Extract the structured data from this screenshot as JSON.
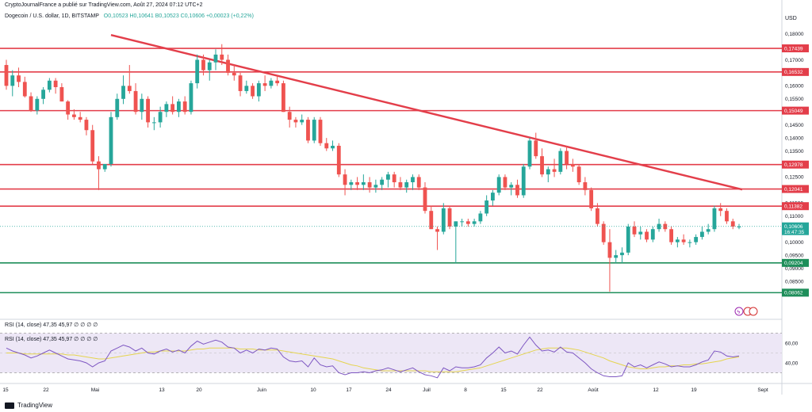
{
  "header": {
    "publisher": "CryptoJournalFrance a publié sur TradingView.com, Août 27, 2024 07:12 UTC+2",
    "symbol_line": "Dogecoin / U.S. dollar, 1D, BITSTAMP",
    "ohlc": "O0,10523  H0,10641  B0,10523  C0,10606  +0,00023 (+0,22%)",
    "currency": "USD"
  },
  "rsi": {
    "label_top": "RSI (14, close)  47,35  45,97  ∅  ∅  ∅  ∅",
    "label_pane": "RSI (14, close)  47,35  45,97  ∅  ∅  ∅  ∅",
    "ticks": [
      "60,00",
      "40,00"
    ],
    "color_rsi": "#7e57c2",
    "color_ma": "#e5d44e",
    "band_color": "#ede7f6"
  },
  "footer": {
    "brand": "TradingView"
  },
  "colors": {
    "up": "#26a69a",
    "down": "#ef5350",
    "resistance": "#e33e4a",
    "support": "#1e8e5a",
    "trend": "#e33e4a",
    "price_tag": "#26a69a"
  },
  "chart_data": {
    "type": "candlestick",
    "title": "Dogecoin / U.S. dollar, 1D, BITSTAMP",
    "x_ticks": [
      "15",
      "22",
      "Mai",
      "13",
      "20",
      "Juin",
      "10",
      "17",
      "24",
      "Juil",
      "8",
      "15",
      "22",
      "Août",
      "12",
      "19",
      "Sept"
    ],
    "y_ticks": [
      "0,18000",
      "0,17500",
      "0,17000",
      "0,16500",
      "0,16000",
      "0,15500",
      "0,15000",
      "0,14500",
      "0,14000",
      "0,13500",
      "0,13000",
      "0,12500",
      "0,12000",
      "0,11500",
      "0,11000",
      "0,10500",
      "0,10000",
      "0,09500",
      "0,09000",
      "0,08500",
      "0,08000"
    ],
    "ylim": [
      0.078,
      0.182
    ],
    "price_levels_resistance": [
      "0,17439",
      "0,16532",
      "0,15049",
      "0,12978",
      "0,12041",
      "0,11382"
    ],
    "price_levels_support": [
      "0,09204",
      "0,08062"
    ],
    "current_price": "0,10606",
    "countdown": "16:47:35",
    "trendline": [
      [
        0.1795,
        "2024-04-18"
      ],
      [
        0.1202,
        "2024-08-30"
      ]
    ],
    "candles_ohlc": [
      [
        0.168,
        0.17,
        0.1585,
        0.16
      ],
      [
        0.16,
        0.166,
        0.156,
        0.164
      ],
      [
        0.164,
        0.167,
        0.1595,
        0.1615
      ],
      [
        0.1615,
        0.1635,
        0.1555,
        0.156
      ],
      [
        0.156,
        0.1575,
        0.15,
        0.1505
      ],
      [
        0.1505,
        0.156,
        0.149,
        0.155
      ],
      [
        0.155,
        0.1595,
        0.153,
        0.1585
      ],
      [
        0.1585,
        0.163,
        0.1575,
        0.162
      ],
      [
        0.162,
        0.163,
        0.157,
        0.1595
      ],
      [
        0.1595,
        0.161,
        0.154,
        0.154
      ],
      [
        0.154,
        0.1545,
        0.147,
        0.149
      ],
      [
        0.149,
        0.151,
        0.147,
        0.148
      ],
      [
        0.148,
        0.15,
        0.146,
        0.147
      ],
      [
        0.147,
        0.148,
        0.141,
        0.143
      ],
      [
        0.143,
        0.145,
        0.13,
        0.131
      ],
      [
        0.131,
        0.133,
        0.12,
        0.128
      ],
      [
        0.128,
        0.13,
        0.127,
        0.13
      ],
      [
        0.13,
        0.15,
        0.129,
        0.148
      ],
      [
        0.148,
        0.157,
        0.147,
        0.155
      ],
      [
        0.155,
        0.164,
        0.153,
        0.16
      ],
      [
        0.16,
        0.168,
        0.157,
        0.158
      ],
      [
        0.158,
        0.161,
        0.149,
        0.15
      ],
      [
        0.15,
        0.157,
        0.147,
        0.155
      ],
      [
        0.155,
        0.156,
        0.144,
        0.146
      ],
      [
        0.146,
        0.148,
        0.143,
        0.146
      ],
      [
        0.146,
        0.152,
        0.144,
        0.15
      ],
      [
        0.15,
        0.154,
        0.148,
        0.153
      ],
      [
        0.153,
        0.156,
        0.149,
        0.15
      ],
      [
        0.15,
        0.155,
        0.148,
        0.154
      ],
      [
        0.154,
        0.156,
        0.149,
        0.15
      ],
      [
        0.15,
        0.162,
        0.149,
        0.161
      ],
      [
        0.161,
        0.172,
        0.159,
        0.17
      ],
      [
        0.17,
        0.172,
        0.164,
        0.166
      ],
      [
        0.166,
        0.17,
        0.162,
        0.169
      ],
      [
        0.169,
        0.174,
        0.166,
        0.172
      ],
      [
        0.172,
        0.176,
        0.168,
        0.17
      ],
      [
        0.17,
        0.172,
        0.164,
        0.165
      ],
      [
        0.165,
        0.168,
        0.162,
        0.164
      ],
      [
        0.164,
        0.165,
        0.156,
        0.158
      ],
      [
        0.158,
        0.162,
        0.157,
        0.16
      ],
      [
        0.16,
        0.161,
        0.155,
        0.156
      ],
      [
        0.156,
        0.162,
        0.154,
        0.161
      ],
      [
        0.161,
        0.164,
        0.158,
        0.16
      ],
      [
        0.16,
        0.163,
        0.159,
        0.162
      ],
      [
        0.162,
        0.164,
        0.16,
        0.161
      ],
      [
        0.161,
        0.162,
        0.15,
        0.15
      ],
      [
        0.15,
        0.152,
        0.144,
        0.147
      ],
      [
        0.147,
        0.148,
        0.144,
        0.146
      ],
      [
        0.146,
        0.149,
        0.145,
        0.147
      ],
      [
        0.147,
        0.148,
        0.138,
        0.139
      ],
      [
        0.139,
        0.148,
        0.138,
        0.147
      ],
      [
        0.147,
        0.148,
        0.137,
        0.138
      ],
      [
        0.138,
        0.14,
        0.135,
        0.136
      ],
      [
        0.136,
        0.139,
        0.135,
        0.137
      ],
      [
        0.137,
        0.138,
        0.125,
        0.126
      ],
      [
        0.126,
        0.128,
        0.118,
        0.122
      ],
      [
        0.122,
        0.124,
        0.12,
        0.123
      ],
      [
        0.123,
        0.125,
        0.12,
        0.122
      ],
      [
        0.122,
        0.126,
        0.12,
        0.123
      ],
      [
        0.123,
        0.125,
        0.119,
        0.121
      ],
      [
        0.121,
        0.124,
        0.119,
        0.122
      ],
      [
        0.122,
        0.125,
        0.12,
        0.124
      ],
      [
        0.124,
        0.127,
        0.121,
        0.126
      ],
      [
        0.126,
        0.127,
        0.121,
        0.123
      ],
      [
        0.123,
        0.125,
        0.12,
        0.121
      ],
      [
        0.121,
        0.124,
        0.119,
        0.123
      ],
      [
        0.123,
        0.126,
        0.12,
        0.125
      ],
      [
        0.125,
        0.126,
        0.12,
        0.121
      ],
      [
        0.121,
        0.123,
        0.111,
        0.112
      ],
      [
        0.112,
        0.114,
        0.105,
        0.105
      ],
      [
        0.105,
        0.106,
        0.097,
        0.104
      ],
      [
        0.104,
        0.115,
        0.103,
        0.113
      ],
      [
        0.113,
        0.114,
        0.105,
        0.106
      ],
      [
        0.106,
        0.108,
        0.092,
        0.108
      ],
      [
        0.108,
        0.109,
        0.106,
        0.108
      ],
      [
        0.108,
        0.109,
        0.106,
        0.107
      ],
      [
        0.107,
        0.109,
        0.106,
        0.108
      ],
      [
        0.108,
        0.112,
        0.107,
        0.111
      ],
      [
        0.111,
        0.118,
        0.11,
        0.116
      ],
      [
        0.116,
        0.12,
        0.114,
        0.119
      ],
      [
        0.119,
        0.126,
        0.118,
        0.125
      ],
      [
        0.125,
        0.126,
        0.12,
        0.121
      ],
      [
        0.121,
        0.123,
        0.118,
        0.122
      ],
      [
        0.122,
        0.124,
        0.117,
        0.118
      ],
      [
        0.118,
        0.13,
        0.117,
        0.129
      ],
      [
        0.129,
        0.14,
        0.128,
        0.139
      ],
      [
        0.139,
        0.142,
        0.132,
        0.133
      ],
      [
        0.133,
        0.136,
        0.125,
        0.126
      ],
      [
        0.126,
        0.129,
        0.123,
        0.128
      ],
      [
        0.128,
        0.132,
        0.125,
        0.127
      ],
      [
        0.127,
        0.136,
        0.126,
        0.135
      ],
      [
        0.135,
        0.137,
        0.128,
        0.13
      ],
      [
        0.13,
        0.132,
        0.127,
        0.129
      ],
      [
        0.129,
        0.13,
        0.122,
        0.123
      ],
      [
        0.123,
        0.125,
        0.118,
        0.12
      ],
      [
        0.12,
        0.121,
        0.112,
        0.113
      ],
      [
        0.113,
        0.115,
        0.106,
        0.107
      ],
      [
        0.107,
        0.108,
        0.099,
        0.1
      ],
      [
        0.1,
        0.105,
        0.081,
        0.094
      ],
      [
        0.094,
        0.097,
        0.092,
        0.095
      ],
      [
        0.095,
        0.098,
        0.092,
        0.096
      ],
      [
        0.096,
        0.107,
        0.095,
        0.106
      ],
      [
        0.106,
        0.108,
        0.102,
        0.103
      ],
      [
        0.103,
        0.106,
        0.101,
        0.104
      ],
      [
        0.104,
        0.105,
        0.1,
        0.101
      ],
      [
        0.101,
        0.106,
        0.1,
        0.105
      ],
      [
        0.105,
        0.109,
        0.104,
        0.107
      ],
      [
        0.107,
        0.108,
        0.104,
        0.105
      ],
      [
        0.105,
        0.106,
        0.099,
        0.1
      ],
      [
        0.1,
        0.102,
        0.098,
        0.101
      ],
      [
        0.101,
        0.103,
        0.099,
        0.1
      ],
      [
        0.1,
        0.101,
        0.098,
        0.1
      ],
      [
        0.1,
        0.103,
        0.099,
        0.102
      ],
      [
        0.102,
        0.106,
        0.101,
        0.104
      ],
      [
        0.104,
        0.107,
        0.103,
        0.105
      ],
      [
        0.105,
        0.114,
        0.104,
        0.113
      ],
      [
        0.113,
        0.115,
        0.11,
        0.112
      ],
      [
        0.112,
        0.113,
        0.107,
        0.108
      ],
      [
        0.108,
        0.109,
        0.105,
        0.106
      ],
      [
        0.106,
        0.107,
        0.105,
        0.106
      ]
    ],
    "rsi_values": [
      55,
      52,
      50,
      48,
      45,
      47,
      50,
      53,
      50,
      47,
      44,
      43,
      42,
      40,
      36,
      40,
      42,
      52,
      55,
      58,
      56,
      52,
      55,
      50,
      49,
      52,
      54,
      51,
      53,
      50,
      57,
      62,
      59,
      61,
      63,
      61,
      56,
      55,
      50,
      53,
      50,
      54,
      53,
      55,
      54,
      46,
      42,
      41,
      42,
      36,
      45,
      38,
      36,
      37,
      30,
      28,
      30,
      30,
      31,
      30,
      32,
      33,
      35,
      33,
      31,
      33,
      35,
      31,
      28,
      27,
      25,
      35,
      32,
      36,
      35,
      35,
      36,
      38,
      45,
      50,
      56,
      50,
      52,
      49,
      58,
      66,
      58,
      52,
      53,
      51,
      56,
      51,
      50,
      45,
      40,
      34,
      30,
      27,
      26,
      26,
      27,
      40,
      36,
      38,
      35,
      38,
      41,
      39,
      36,
      37,
      36,
      36,
      38,
      41,
      43,
      52,
      51,
      47,
      46,
      47
    ],
    "rsi_ma": [
      50,
      50,
      50,
      49,
      49,
      49,
      49,
      49,
      49,
      49,
      48,
      48,
      47,
      46,
      45,
      44,
      44,
      45,
      46,
      47,
      48,
      49,
      50,
      51,
      51,
      52,
      52,
      52,
      52,
      52,
      53,
      54,
      54,
      55,
      55,
      55,
      55,
      55,
      54,
      54,
      54,
      53,
      53,
      53,
      53,
      52,
      51,
      50,
      49,
      48,
      47,
      46,
      45,
      44,
      42,
      40,
      38,
      37,
      35,
      34,
      33,
      32,
      32,
      32,
      32,
      32,
      32,
      32,
      32,
      31,
      31,
      31,
      31,
      31,
      32,
      33,
      34,
      35,
      37,
      39,
      41,
      43,
      45,
      47,
      49,
      51,
      53,
      54,
      55,
      55,
      55,
      55,
      54,
      53,
      51,
      49,
      47,
      45,
      42,
      40,
      38,
      36,
      35,
      34,
      34,
      35,
      36,
      36,
      37,
      37,
      38,
      38,
      39,
      39,
      40,
      41,
      42,
      44,
      45,
      46
    ],
    "rsi_ylim": [
      24,
      72
    ]
  }
}
